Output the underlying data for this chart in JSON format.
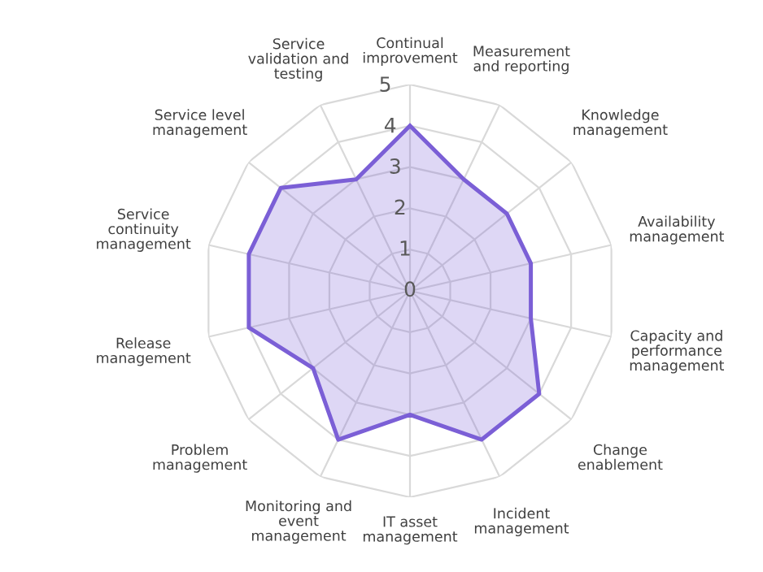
{
  "chart_data": {
    "type": "radar",
    "categories": [
      "Continual improvement",
      "Measurement and reporting",
      "Knowledge management",
      "Availability management",
      "Capacity and performance management",
      "Change enablement",
      "Incident management",
      "IT asset management",
      "Monitoring and event management",
      "Problem management",
      "Release management",
      "Service continuity management",
      "Service level management",
      "Service validation and testing"
    ],
    "series": [
      {
        "color": "#7b5fd6",
        "values": [
          4,
          3,
          3,
          3,
          3,
          4,
          4,
          3,
          4,
          3,
          4,
          4,
          4,
          3
        ]
      }
    ],
    "ylim": [
      0,
      5
    ],
    "yticks": [
      0,
      1,
      2,
      3,
      4,
      5
    ],
    "grid": true,
    "legend": false
  }
}
